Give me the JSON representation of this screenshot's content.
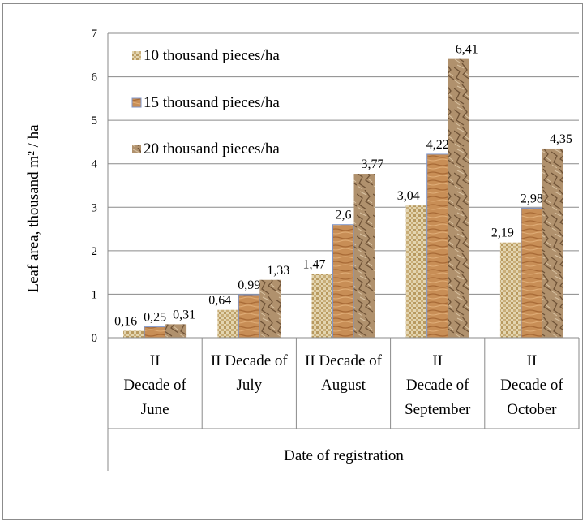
{
  "chart_data": {
    "type": "bar",
    "xlabel": "Date of registration",
    "ylabel": "Leaf area, thousand m² / ha",
    "ylim": [
      0,
      7
    ],
    "yticks": [
      0,
      1,
      2,
      3,
      4,
      5,
      6,
      7
    ],
    "grid": true,
    "legend_position": "top-left",
    "categories": [
      [
        "II",
        "Decade of",
        "June"
      ],
      [
        "II  Decade of",
        "July"
      ],
      [
        "II Decade of",
        "August"
      ],
      [
        "II",
        "Decade of",
        "September"
      ],
      [
        "II",
        "Decade of",
        "October"
      ]
    ],
    "series": [
      {
        "name": "10 thousand pieces/ha",
        "values": [
          0.16,
          0.64,
          1.47,
          3.04,
          2.19
        ],
        "labels": [
          "0,16",
          "0,64",
          "1,47",
          "3,04",
          "2,19"
        ],
        "color": "#d9c9a0"
      },
      {
        "name": "15 thousand pieces/ha",
        "values": [
          0.25,
          0.99,
          2.6,
          4.22,
          2.98
        ],
        "labels": [
          "0,25",
          "0,99",
          "2,6",
          "4,22",
          "2,98"
        ],
        "color": "#c58d55"
      },
      {
        "name": "20 thousand pieces/ha",
        "values": [
          0.31,
          1.33,
          3.77,
          6.41,
          4.35
        ],
        "labels": [
          "0,31",
          "1,33",
          "3,77",
          "6,41",
          "4,35"
        ],
        "color": "#a98a66"
      }
    ]
  }
}
